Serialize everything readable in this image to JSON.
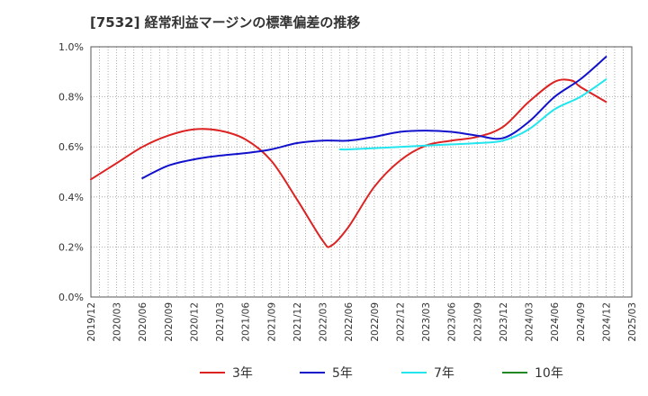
{
  "chart_data": {
    "type": "line",
    "title": "[7532]  経常利益マージンの標準偏差の推移",
    "xlabel": "",
    "ylabel": "",
    "ylim": [
      0,
      1.0
    ],
    "yticks": [
      "0.0%",
      "0.2%",
      "0.4%",
      "0.6%",
      "0.8%",
      "1.0%"
    ],
    "x_tick_labels": [
      "2019/12",
      "2020/03",
      "2020/06",
      "2020/09",
      "2020/12",
      "2021/03",
      "2021/06",
      "2021/09",
      "2021/12",
      "2022/03",
      "2022/06",
      "2022/09",
      "2022/12",
      "2023/03",
      "2023/06",
      "2023/09",
      "2023/12",
      "2024/03",
      "2024/06",
      "2024/09",
      "2024/12",
      "2025/03"
    ],
    "grid": true,
    "legend_position": "bottom",
    "series": [
      {
        "name": "3年",
        "color": "#dd2222",
        "points": [
          [
            "2019/12",
            0.47
          ],
          [
            "2020/03",
            0.535
          ],
          [
            "2020/06",
            0.6
          ],
          [
            "2020/09",
            0.645
          ],
          [
            "2020/12",
            0.67
          ],
          [
            "2021/03",
            0.665
          ],
          [
            "2021/06",
            0.63
          ],
          [
            "2021/09",
            0.545
          ],
          [
            "2021/12",
            0.39
          ],
          [
            "2022/03",
            0.225
          ],
          [
            "2022/04",
            0.205
          ],
          [
            "2022/06",
            0.28
          ],
          [
            "2022/09",
            0.44
          ],
          [
            "2022/12",
            0.545
          ],
          [
            "2023/03",
            0.605
          ],
          [
            "2023/06",
            0.625
          ],
          [
            "2023/09",
            0.64
          ],
          [
            "2023/12",
            0.68
          ],
          [
            "2024/03",
            0.78
          ],
          [
            "2024/06",
            0.86
          ],
          [
            "2024/08",
            0.865
          ],
          [
            "2024/09",
            0.84
          ],
          [
            "2024/12",
            0.78
          ]
        ]
      },
      {
        "name": "5年",
        "color": "#1111cc",
        "points": [
          [
            "2020/06",
            0.475
          ],
          [
            "2020/09",
            0.525
          ],
          [
            "2020/12",
            0.55
          ],
          [
            "2021/03",
            0.565
          ],
          [
            "2021/06",
            0.575
          ],
          [
            "2021/09",
            0.59
          ],
          [
            "2021/12",
            0.615
          ],
          [
            "2022/03",
            0.625
          ],
          [
            "2022/06",
            0.625
          ],
          [
            "2022/09",
            0.64
          ],
          [
            "2022/12",
            0.66
          ],
          [
            "2023/03",
            0.665
          ],
          [
            "2023/06",
            0.66
          ],
          [
            "2023/09",
            0.645
          ],
          [
            "2023/12",
            0.635
          ],
          [
            "2024/03",
            0.7
          ],
          [
            "2024/06",
            0.8
          ],
          [
            "2024/09",
            0.87
          ],
          [
            "2024/12",
            0.96
          ]
        ]
      },
      {
        "name": "7年",
        "color": "#22e5ee",
        "points": [
          [
            "2022/05",
            0.59
          ],
          [
            "2022/06",
            0.59
          ],
          [
            "2022/09",
            0.595
          ],
          [
            "2022/12",
            0.6
          ],
          [
            "2023/03",
            0.605
          ],
          [
            "2023/06",
            0.61
          ],
          [
            "2023/09",
            0.615
          ],
          [
            "2023/12",
            0.625
          ],
          [
            "2024/03",
            0.67
          ],
          [
            "2024/06",
            0.75
          ],
          [
            "2024/09",
            0.8
          ],
          [
            "2024/12",
            0.87
          ]
        ]
      },
      {
        "name": "10年",
        "color": "#228822",
        "points": []
      }
    ]
  }
}
